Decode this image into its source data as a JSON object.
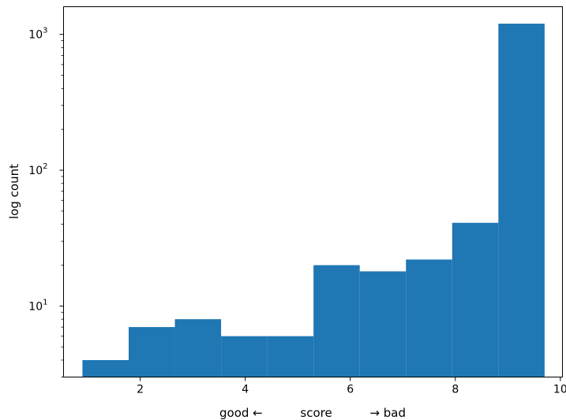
{
  "chart_data": {
    "type": "bar",
    "title": "",
    "xlabel": "good ←          score          → bad",
    "ylabel": "log count",
    "yscale": "log",
    "grid": false,
    "legend": "none",
    "color": "#1f77b4",
    "xlim": [
      0.54,
      10.04
    ],
    "ylim": [
      3.0,
      1600
    ],
    "bins": [
      {
        "x0": 0.9,
        "x1": 1.78,
        "count": 4
      },
      {
        "x0": 1.78,
        "x1": 2.66,
        "count": 7
      },
      {
        "x0": 2.66,
        "x1": 3.54,
        "count": 8
      },
      {
        "x0": 3.54,
        "x1": 4.42,
        "count": 6
      },
      {
        "x0": 4.42,
        "x1": 5.3,
        "count": 6
      },
      {
        "x0": 5.3,
        "x1": 6.18,
        "count": 20
      },
      {
        "x0": 6.18,
        "x1": 7.06,
        "count": 18
      },
      {
        "x0": 7.06,
        "x1": 7.94,
        "count": 22
      },
      {
        "x0": 7.94,
        "x1": 8.82,
        "count": 41
      },
      {
        "x0": 8.82,
        "x1": 9.7,
        "count": 1200
      }
    ],
    "x_ticks": [
      2,
      4,
      6,
      8,
      10
    ],
    "y_ticks": [
      {
        "value": 10,
        "base": "10",
        "exp": "1"
      },
      {
        "value": 100,
        "base": "10",
        "exp": "2"
      },
      {
        "value": 1000,
        "base": "10",
        "exp": "3"
      }
    ]
  }
}
